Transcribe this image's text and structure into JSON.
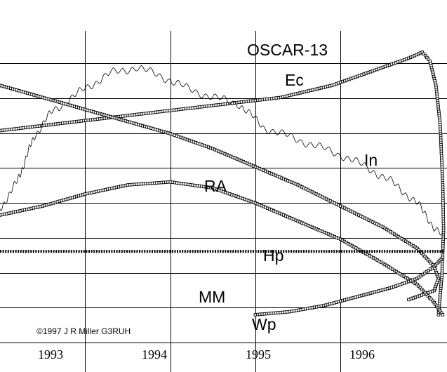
{
  "chart_data": {
    "type": "scatter",
    "title": "OSCAR-13",
    "credit": "©1997 J R Miller G3RUH",
    "x_unit": "year",
    "xlim": [
      1992.0,
      1997.25
    ],
    "x_ticks": [
      {
        "label": "1993",
        "value": 1993
      },
      {
        "label": "1994",
        "value": 1994
      },
      {
        "label": "1995",
        "value": 1995
      },
      {
        "label": "1996",
        "value": 1996
      }
    ],
    "y_axis": "normalized 0-1 (top = 1)",
    "ylim": [
      0,
      1
    ],
    "grid": true,
    "series": [
      {
        "name": "Ec",
        "marker": "square",
        "points": [
          [
            1992.0,
            0.73
          ],
          [
            1992.3,
            0.74
          ],
          [
            1992.6,
            0.75
          ],
          [
            1992.9,
            0.76
          ],
          [
            1993.2,
            0.77
          ],
          [
            1993.5,
            0.78
          ],
          [
            1993.8,
            0.79
          ],
          [
            1994.1,
            0.8
          ],
          [
            1994.4,
            0.81
          ],
          [
            1994.7,
            0.82
          ],
          [
            1995.0,
            0.83
          ],
          [
            1995.3,
            0.84
          ],
          [
            1995.6,
            0.86
          ],
          [
            1995.9,
            0.88
          ],
          [
            1996.2,
            0.91
          ],
          [
            1996.5,
            0.94
          ],
          [
            1996.8,
            0.97
          ],
          [
            1996.96,
            0.99
          ],
          [
            1997.05,
            0.96
          ],
          [
            1997.12,
            0.88
          ],
          [
            1997.17,
            0.75
          ],
          [
            1997.2,
            0.55
          ],
          [
            1997.21,
            0.4
          ],
          [
            1997.19,
            0.25
          ],
          [
            1997.15,
            0.12
          ]
        ]
      },
      {
        "name": "In",
        "marker": "line",
        "points": [
          [
            1992.0,
            0.47
          ],
          [
            1992.2,
            0.56
          ],
          [
            1992.4,
            0.71
          ],
          [
            1992.6,
            0.79
          ],
          [
            1992.8,
            0.83
          ],
          [
            1993.0,
            0.87
          ],
          [
            1993.3,
            0.92
          ],
          [
            1993.6,
            0.94
          ],
          [
            1993.9,
            0.91
          ],
          [
            1994.2,
            0.87
          ],
          [
            1994.5,
            0.84
          ],
          [
            1994.8,
            0.82
          ],
          [
            1995.1,
            0.74
          ],
          [
            1995.4,
            0.71
          ],
          [
            1995.7,
            0.68
          ],
          [
            1996.0,
            0.65
          ],
          [
            1996.3,
            0.61
          ],
          [
            1996.6,
            0.56
          ],
          [
            1996.9,
            0.49
          ],
          [
            1997.1,
            0.41
          ],
          [
            1997.2,
            0.38
          ]
        ]
      },
      {
        "name": "RA",
        "marker": "square",
        "points": [
          [
            1992.0,
            0.88
          ],
          [
            1992.5,
            0.84
          ],
          [
            1993.0,
            0.8
          ],
          [
            1993.5,
            0.76
          ],
          [
            1994.0,
            0.72
          ],
          [
            1994.5,
            0.67
          ],
          [
            1995.0,
            0.61
          ],
          [
            1995.5,
            0.55
          ],
          [
            1996.0,
            0.48
          ],
          [
            1996.5,
            0.41
          ],
          [
            1996.9,
            0.34
          ],
          [
            1997.1,
            0.28
          ],
          [
            1997.15,
            0.24
          ],
          [
            1997.1,
            0.2
          ],
          [
            1996.8,
            0.17
          ]
        ]
      },
      {
        "name": "Hp",
        "marker": "square",
        "points": [
          [
            1992.0,
            0.45
          ],
          [
            1992.5,
            0.48
          ],
          [
            1993.0,
            0.52
          ],
          [
            1993.5,
            0.55
          ],
          [
            1994.0,
            0.56
          ],
          [
            1994.5,
            0.54
          ],
          [
            1995.0,
            0.49
          ],
          [
            1995.5,
            0.43
          ],
          [
            1996.0,
            0.37
          ],
          [
            1996.5,
            0.29
          ],
          [
            1996.9,
            0.22
          ],
          [
            1997.1,
            0.16
          ],
          [
            1997.2,
            0.12
          ]
        ]
      },
      {
        "name": "MM",
        "marker": "square",
        "points": [
          [
            1992.0,
            0.33
          ],
          [
            1993.0,
            0.33
          ],
          [
            1994.0,
            0.33
          ],
          [
            1995.0,
            0.33
          ],
          [
            1996.0,
            0.33
          ],
          [
            1996.8,
            0.33
          ],
          [
            1997.1,
            0.33
          ],
          [
            1997.21,
            0.33
          ]
        ]
      },
      {
        "name": "Wp",
        "marker": "square",
        "points": [
          [
            1995.0,
            0.12
          ],
          [
            1995.4,
            0.13
          ],
          [
            1995.8,
            0.15
          ],
          [
            1996.2,
            0.18
          ],
          [
            1996.6,
            0.21
          ],
          [
            1996.9,
            0.24
          ],
          [
            1997.1,
            0.28
          ],
          [
            1997.2,
            0.31
          ]
        ]
      }
    ]
  }
}
